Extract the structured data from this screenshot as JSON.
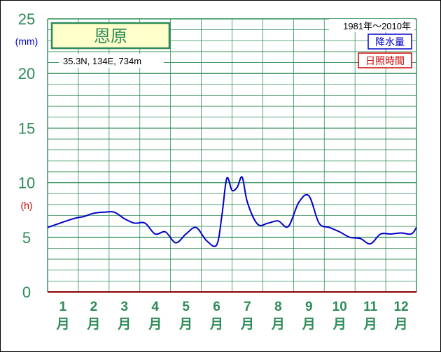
{
  "station": {
    "name": "恩原",
    "location": "35.3N,  134E,  734m"
  },
  "period": "1981年〜2010年",
  "legend": {
    "precipitation": "降水量",
    "sunshine": "日照時間"
  },
  "colors": {
    "grid": "#2e8b57",
    "axis_text": "#2e8b57",
    "precip_series": "#0000cc",
    "sunshine_label": "#cc0000",
    "title_box_bg": "#ffffcc"
  },
  "chart_data": {
    "type": "line",
    "title": "恩原",
    "y_left_label": "(mm)",
    "y_left_secondary_label": "(h)",
    "ylim": [
      0,
      25
    ],
    "y_ticks": [
      "0",
      "5",
      "10",
      "15",
      "20",
      "25"
    ],
    "x_ticks": [
      {
        "num": "1",
        "unit": "月"
      },
      {
        "num": "2",
        "unit": "月"
      },
      {
        "num": "3",
        "unit": "月"
      },
      {
        "num": "4",
        "unit": "月"
      },
      {
        "num": "5",
        "unit": "月"
      },
      {
        "num": "6",
        "unit": "月"
      },
      {
        "num": "7",
        "unit": "月"
      },
      {
        "num": "8",
        "unit": "月"
      },
      {
        "num": "9",
        "unit": "月"
      },
      {
        "num": "10",
        "unit": "月"
      },
      {
        "num": "11",
        "unit": "月"
      },
      {
        "num": "12",
        "unit": "月"
      }
    ],
    "series": [
      {
        "name": "降水量",
        "x": [
          1.0,
          1.33,
          1.67,
          2.0,
          2.33,
          2.67,
          3.0,
          3.33,
          3.67,
          4.0,
          4.33,
          4.67,
          5.0,
          5.33,
          5.67,
          6.0,
          6.17,
          6.33,
          6.5,
          6.67,
          6.83,
          7.0,
          7.33,
          7.67,
          8.0,
          8.33,
          8.67,
          9.0,
          9.33,
          9.67,
          10.0,
          10.33,
          10.67,
          11.0,
          11.33,
          11.67,
          12.0,
          12.33,
          12.67
        ],
        "y": [
          5.9,
          6.7,
          6.9,
          7.2,
          7.3,
          7.3,
          6.7,
          6.3,
          6.3,
          5.3,
          5.5,
          4.5,
          5.3,
          5.9,
          4.7,
          4.3,
          7.0,
          10.4,
          9.3,
          9.6,
          10.5,
          8.2,
          6.2,
          6.3,
          6.5,
          6.0,
          8.2,
          8.8,
          6.3,
          5.9,
          5.5,
          5.0,
          4.9,
          4.4,
          5.3,
          5.3,
          5.4,
          5.3,
          5.9
        ]
      }
    ],
    "grid": true
  }
}
